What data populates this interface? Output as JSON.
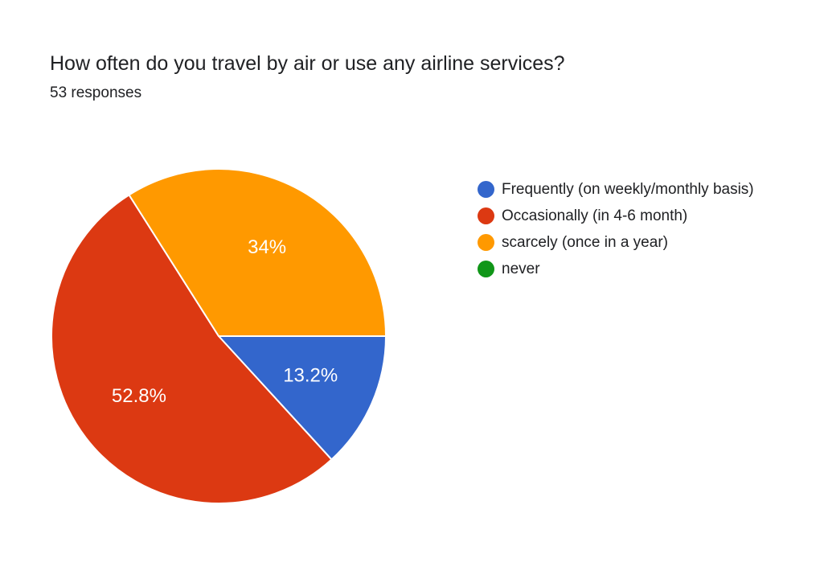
{
  "chart_data": {
    "type": "pie",
    "title": "How often do you travel by air or use any airline services?",
    "subtitle": "53 responses",
    "legend_position": "right",
    "slices": [
      {
        "label": "Frequently (on weekly/monthly basis)",
        "value": 13.2,
        "display": "13.2%",
        "color": "#3366cc"
      },
      {
        "label": "Occasionally (in 4-6 month)",
        "value": 52.8,
        "display": "52.8%",
        "color": "#dc3912"
      },
      {
        "label": "scarcely (once in a year)",
        "value": 34,
        "display": "34%",
        "color": "#ff9900"
      },
      {
        "label": "never",
        "value": 0,
        "display": "",
        "color": "#109618"
      }
    ]
  }
}
